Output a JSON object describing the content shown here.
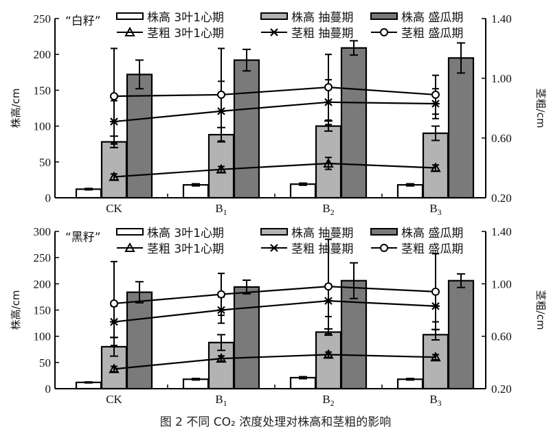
{
  "chart_data": [
    {
      "type": "bar",
      "title": "“白籽”",
      "categories": [
        "CK",
        "B1",
        "B2",
        "B3"
      ],
      "ylabel": "株高/cm",
      "y2label": "茎粗/cm",
      "ylim": [
        0,
        250
      ],
      "yticks": [
        0,
        50,
        100,
        150,
        200,
        250
      ],
      "y2lim": [
        0.2,
        1.4
      ],
      "y2ticks": [
        "0.20",
        "0.60",
        "1.00",
        "1.40"
      ],
      "legend_position": "top",
      "series": [
        {
          "name": "株高  3叶1心期",
          "kind": "bar",
          "axis": "left",
          "color": "#ffffff",
          "values": [
            12,
            18,
            19,
            18
          ],
          "errors": [
            1,
            1.5,
            1.5,
            1.5
          ]
        },
        {
          "name": "株高  抽蔓期",
          "kind": "bar",
          "axis": "left",
          "color": "#b3b3b3",
          "values": [
            78,
            88,
            100,
            90
          ],
          "errors": [
            8,
            10,
            7,
            10
          ]
        },
        {
          "name": "株高  盛瓜期",
          "kind": "bar",
          "axis": "left",
          "color": "#7a7a7a",
          "values": [
            172,
            192,
            209,
            195
          ],
          "errors": [
            20,
            15,
            10,
            21
          ]
        },
        {
          "name": "茎粗  3叶1心期",
          "kind": "line",
          "axis": "right",
          "marker": "triangle",
          "values": [
            0.34,
            0.39,
            0.43,
            0.4
          ],
          "errors": [
            0.02,
            0.02,
            0.04,
            0.02
          ]
        },
        {
          "name": "茎粗  抽蔓期",
          "kind": "line",
          "axis": "right",
          "marker": "star",
          "values": [
            0.71,
            0.78,
            0.84,
            0.83
          ],
          "errors": [
            0.14,
            0.2,
            0.15,
            0.1
          ]
        },
        {
          "name": "茎粗  盛瓜期",
          "kind": "line",
          "axis": "right",
          "marker": "circle",
          "values": [
            0.88,
            0.89,
            0.94,
            0.89
          ],
          "errors": [
            0.32,
            0.31,
            0.22,
            0.13
          ]
        }
      ]
    },
    {
      "type": "bar",
      "title": "“黑籽”",
      "categories": [
        "CK",
        "B1",
        "B2",
        "B3"
      ],
      "ylabel": "株高/cm",
      "y2label": "茎粗/cm",
      "ylim": [
        0,
        300
      ],
      "yticks": [
        0,
        50,
        100,
        150,
        200,
        250,
        300
      ],
      "y2lim": [
        0.2,
        1.4
      ],
      "y2ticks": [
        "0.20",
        "0.60",
        "1.00",
        "1.40"
      ],
      "legend_position": "top",
      "series": [
        {
          "name": "株高  3叶1心期",
          "kind": "bar",
          "axis": "left",
          "color": "#ffffff",
          "values": [
            12,
            18,
            21,
            18
          ],
          "errors": [
            1,
            1.5,
            2,
            1.5
          ]
        },
        {
          "name": "株高  抽蔓期",
          "kind": "bar",
          "axis": "left",
          "color": "#b3b3b3",
          "values": [
            80,
            88,
            108,
            103
          ],
          "errors": [
            18,
            15,
            6,
            10
          ]
        },
        {
          "name": "株高  盛瓜期",
          "kind": "bar",
          "axis": "left",
          "color": "#7a7a7a",
          "values": [
            184,
            194,
            206,
            206
          ],
          "errors": [
            20,
            13,
            34,
            13
          ]
        },
        {
          "name": "茎粗  3叶1心期",
          "kind": "line",
          "axis": "right",
          "marker": "triangle",
          "values": [
            0.35,
            0.43,
            0.46,
            0.44
          ],
          "errors": [
            0.02,
            0.02,
            0.02,
            0.02
          ]
        },
        {
          "name": "茎粗  抽蔓期",
          "kind": "line",
          "axis": "right",
          "marker": "star",
          "values": [
            0.71,
            0.8,
            0.87,
            0.83
          ],
          "errors": [
            0.12,
            0.1,
            0.12,
            0.12
          ]
        },
        {
          "name": "茎粗  盛瓜期",
          "kind": "line",
          "axis": "right",
          "marker": "circle",
          "values": [
            0.85,
            0.92,
            0.98,
            0.94
          ],
          "errors": [
            0.32,
            0.16,
            0.36,
            0.29
          ]
        }
      ]
    }
  ],
  "caption": "图 2    不同 CO₂ 浓度处理对株高和茎粗的影响"
}
